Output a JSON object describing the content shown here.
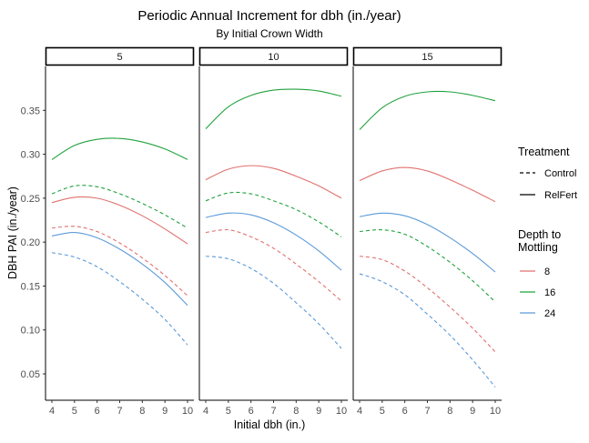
{
  "chart_data": {
    "type": "line",
    "title": "Periodic Annual Increment for dbh (in./year)",
    "subtitle": "By Initial Crown Width",
    "xlabel": "Initial dbh (in.)",
    "ylabel": "DBH PAI (in./year)",
    "xlim": [
      4,
      10
    ],
    "ylim": [
      0.02,
      0.4
    ],
    "x_ticks": [
      "4",
      "5",
      "6",
      "7",
      "8",
      "9",
      "10"
    ],
    "y_ticks": [
      "0.05",
      "0.10",
      "0.15",
      "0.20",
      "0.25",
      "0.30",
      "0.35"
    ],
    "grid": false,
    "legend": {
      "placement": "right",
      "linetype_title": "Treatment",
      "linetype_entries": [
        "Control",
        "RelFert"
      ],
      "color_title_lines": [
        "Depth to",
        "Mottling"
      ],
      "color_entries": [
        "8",
        "16",
        "24"
      ]
    },
    "colors": {
      "8": "#e0716d",
      "16": "#20a23e",
      "24": "#5c9ad8"
    },
    "x": [
      4,
      5,
      6,
      7,
      8,
      9,
      10
    ],
    "panels": [
      {
        "label": "5",
        "series": [
          {
            "depth": "16",
            "treatment": "RelFert",
            "values": [
              0.294,
              0.31,
              0.317,
              0.318,
              0.314,
              0.306,
              0.294
            ]
          },
          {
            "depth": "16",
            "treatment": "Control",
            "values": [
              0.255,
              0.264,
              0.263,
              0.255,
              0.244,
              0.231,
              0.216
            ]
          },
          {
            "depth": "8",
            "treatment": "RelFert",
            "values": [
              0.245,
              0.251,
              0.25,
              0.242,
              0.23,
              0.215,
              0.198
            ]
          },
          {
            "depth": "8",
            "treatment": "Control",
            "values": [
              0.216,
              0.218,
              0.212,
              0.199,
              0.182,
              0.162,
              0.139
            ]
          },
          {
            "depth": "24",
            "treatment": "RelFert",
            "values": [
              0.207,
              0.211,
              0.205,
              0.192,
              0.175,
              0.154,
              0.128
            ]
          },
          {
            "depth": "24",
            "treatment": "Control",
            "values": [
              0.188,
              0.183,
              0.172,
              0.155,
              0.135,
              0.112,
              0.083
            ]
          }
        ]
      },
      {
        "label": "10",
        "series": [
          {
            "depth": "16",
            "treatment": "RelFert",
            "values": [
              0.329,
              0.354,
              0.367,
              0.373,
              0.374,
              0.372,
              0.366
            ]
          },
          {
            "depth": "8",
            "treatment": "RelFert",
            "values": [
              0.271,
              0.283,
              0.287,
              0.284,
              0.275,
              0.264,
              0.25
            ]
          },
          {
            "depth": "16",
            "treatment": "Control",
            "values": [
              0.247,
              0.256,
              0.255,
              0.247,
              0.237,
              0.223,
              0.206
            ]
          },
          {
            "depth": "24",
            "treatment": "RelFert",
            "values": [
              0.228,
              0.233,
              0.231,
              0.222,
              0.208,
              0.19,
              0.168
            ]
          },
          {
            "depth": "8",
            "treatment": "Control",
            "values": [
              0.211,
              0.214,
              0.206,
              0.193,
              0.175,
              0.155,
              0.133
            ]
          },
          {
            "depth": "24",
            "treatment": "Control",
            "values": [
              0.184,
              0.181,
              0.17,
              0.153,
              0.131,
              0.107,
              0.079
            ]
          }
        ]
      },
      {
        "label": "15",
        "series": [
          {
            "depth": "16",
            "treatment": "RelFert",
            "values": [
              0.328,
              0.353,
              0.366,
              0.371,
              0.371,
              0.367,
              0.361
            ]
          },
          {
            "depth": "8",
            "treatment": "RelFert",
            "values": [
              0.27,
              0.281,
              0.285,
              0.281,
              0.271,
              0.259,
              0.246
            ]
          },
          {
            "depth": "24",
            "treatment": "RelFert",
            "values": [
              0.229,
              0.233,
              0.23,
              0.22,
              0.205,
              0.187,
              0.166
            ]
          },
          {
            "depth": "16",
            "treatment": "Control",
            "values": [
              0.212,
              0.214,
              0.209,
              0.195,
              0.177,
              0.156,
              0.132
            ]
          },
          {
            "depth": "8",
            "treatment": "Control",
            "values": [
              0.184,
              0.18,
              0.167,
              0.148,
              0.126,
              0.102,
              0.075
            ]
          },
          {
            "depth": "24",
            "treatment": "Control",
            "values": [
              0.164,
              0.155,
              0.14,
              0.118,
              0.094,
              0.066,
              0.035
            ]
          }
        ]
      }
    ]
  }
}
